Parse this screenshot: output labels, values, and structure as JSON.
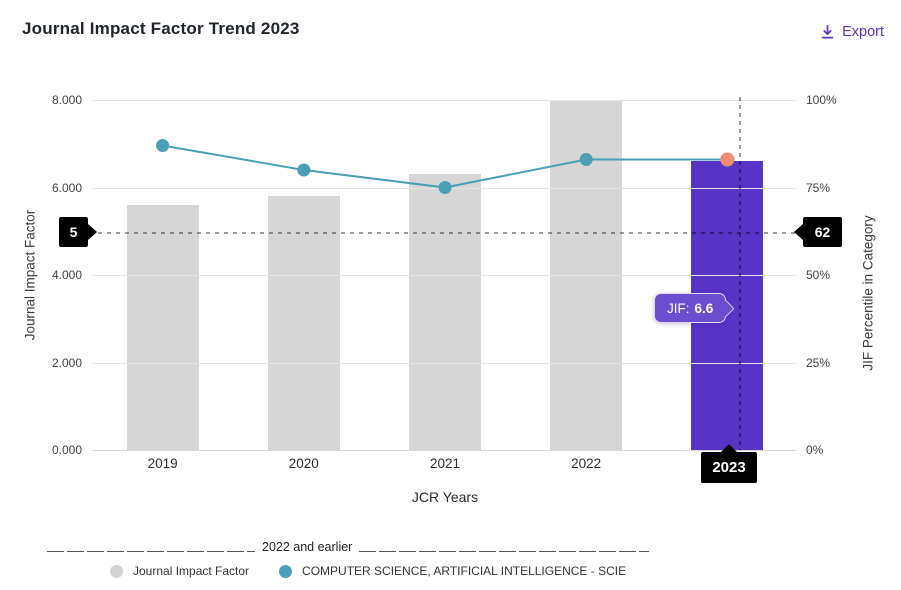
{
  "header": {
    "title": "Journal Impact Factor Trend 2023",
    "export_label": "Export"
  },
  "chart_data": {
    "type": "bar",
    "title": "Journal Impact Factor Trend 2023",
    "categories": [
      "2019",
      "2020",
      "2021",
      "2022",
      "2023"
    ],
    "series": [
      {
        "name": "Journal Impact Factor",
        "type": "bar",
        "axis": "left",
        "values": [
          5.6,
          5.8,
          6.3,
          8.0,
          6.6
        ],
        "color": "#d6d6d6",
        "highlight_color": "#5733c6",
        "highlight_category": "2023"
      },
      {
        "name": "COMPUTER SCIENCE, ARTIFICIAL INTELLIGENCE - SCIE",
        "type": "line",
        "axis": "right",
        "values": [
          87,
          80,
          75,
          83,
          83
        ],
        "color": "#4a9fb5",
        "highlight_point_color": "#ef8e6e",
        "highlight_category": "2023"
      }
    ],
    "xlabel": "JCR Years",
    "ylabel_left": "Journal Impact Factor",
    "ylabel_right": "JIF Percentile in Category",
    "ylim_left": [
      0,
      8
    ],
    "ylim_right": [
      0,
      100
    ],
    "yticks_left": [
      "0.000",
      "2.000",
      "4.000",
      "6.000",
      "8.000"
    ],
    "yticks_right": [
      "0%",
      "25%",
      "50%",
      "75%",
      "100%"
    ],
    "grid": true,
    "legend_position": "bottom"
  },
  "crosshair": {
    "left_axis_value": "5",
    "right_axis_value": "62",
    "year_label": "2023"
  },
  "tooltip": {
    "label": "JIF:",
    "value": "6.6"
  },
  "legend": {
    "group_label": "2022 and earlier",
    "items": [
      {
        "label": "Journal Impact Factor",
        "color": "#d2d2d2"
      },
      {
        "label": "COMPUTER SCIENCE, ARTIFICIAL INTELLIGENCE - SCIE",
        "color": "#4a9fb5"
      }
    ]
  },
  "colors": {
    "accent_purple": "#5e33bf",
    "callout_bg": "#000000"
  }
}
